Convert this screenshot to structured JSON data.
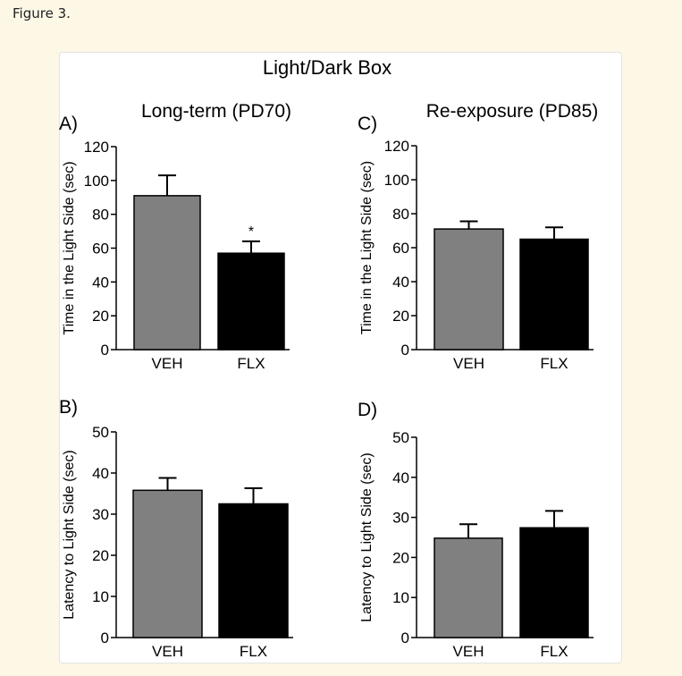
{
  "caption": "Figure 3.",
  "figure_title": "Light/Dark Box",
  "column_titles": [
    "Long-term (PD70)",
    "Re-exposure (PD85)"
  ],
  "colors": {
    "veh": "#808080",
    "flx": "#000000",
    "panel": "#ffffff",
    "page": "#fdf7e6"
  },
  "chart_data": [
    {
      "panel": "A)",
      "type": "bar",
      "categories": [
        "VEH",
        "FLX"
      ],
      "values": [
        91,
        57
      ],
      "errors": [
        12,
        7
      ],
      "annotations": [
        "",
        "*"
      ],
      "ylabel": "Time in the Light Side (sec)",
      "ylim": [
        0,
        120
      ],
      "yticks": [
        0,
        20,
        40,
        60,
        80,
        100,
        120
      ]
    },
    {
      "panel": "C)",
      "type": "bar",
      "categories": [
        "VEH",
        "FLX"
      ],
      "values": [
        71,
        65
      ],
      "errors": [
        4.5,
        7
      ],
      "annotations": [
        "",
        ""
      ],
      "ylabel": "Time in the Light Side (sec)",
      "ylim": [
        0,
        120
      ],
      "yticks": [
        0,
        20,
        40,
        60,
        80,
        100,
        120
      ]
    },
    {
      "panel": "B)",
      "type": "bar",
      "categories": [
        "VEH",
        "FLX"
      ],
      "values": [
        35.8,
        32.5
      ],
      "errors": [
        3,
        3.8
      ],
      "annotations": [
        "",
        ""
      ],
      "ylabel": "Latency to Light Side (sec)",
      "ylim": [
        0,
        50
      ],
      "yticks": [
        0,
        10,
        20,
        30,
        40,
        50
      ]
    },
    {
      "panel": "D)",
      "type": "bar",
      "categories": [
        "VEH",
        "FLX"
      ],
      "values": [
        24.8,
        27.4
      ],
      "errors": [
        3.5,
        4.2
      ],
      "annotations": [
        "",
        ""
      ],
      "ylabel": "Latency to Light Side (sec)",
      "ylim": [
        0,
        50
      ],
      "yticks": [
        0,
        10,
        20,
        30,
        40,
        50
      ]
    }
  ]
}
